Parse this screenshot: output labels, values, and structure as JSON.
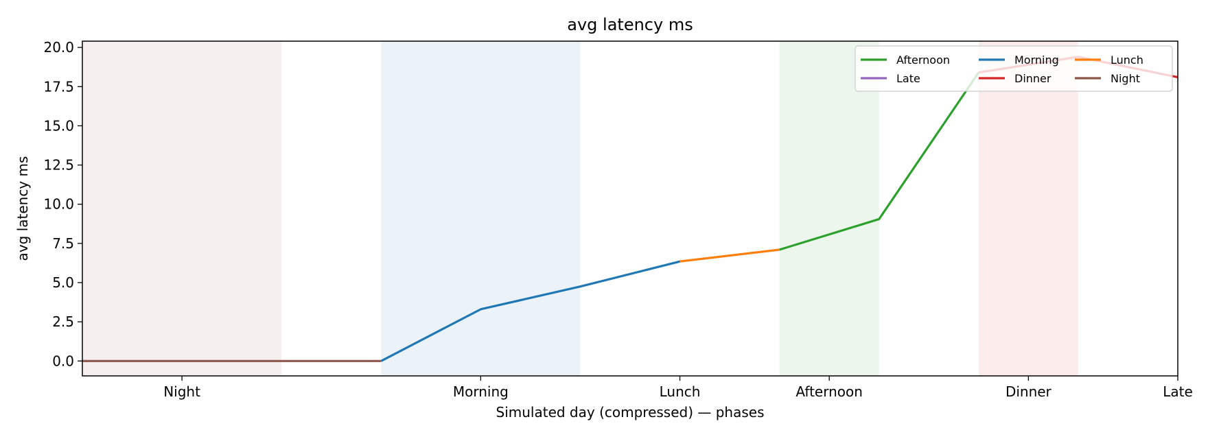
{
  "chart_data": {
    "type": "line",
    "title": "avg latency ms",
    "xlabel": "Simulated day (compressed) — phases",
    "ylabel": "avg latency ms",
    "x_range": [
      0,
      11
    ],
    "ylim": [
      -0.95,
      20.4
    ],
    "yticks": [
      0.0,
      2.5,
      5.0,
      7.5,
      10.0,
      12.5,
      15.0,
      17.5,
      20.0
    ],
    "ytick_labels": [
      "0.0",
      "2.5",
      "5.0",
      "7.5",
      "10.0",
      "12.5",
      "15.0",
      "17.5",
      "20.0"
    ],
    "xticks": [
      {
        "x": 1,
        "label": "Night"
      },
      {
        "x": 4,
        "label": "Morning"
      },
      {
        "x": 6,
        "label": "Lunch"
      },
      {
        "x": 7.5,
        "label": "Afternoon"
      },
      {
        "x": 9.5,
        "label": "Dinner"
      },
      {
        "x": 11,
        "label": "Late"
      }
    ],
    "phase_bands": [
      {
        "phase": "Night",
        "x0": 0,
        "x1": 2,
        "color": "#8c564b"
      },
      {
        "phase": "Morning",
        "x0": 3,
        "x1": 5,
        "color": "#1f77b4"
      },
      {
        "phase": "Afternoon",
        "x0": 7,
        "x1": 8,
        "color": "#2ca02c"
      },
      {
        "phase": "Dinner",
        "x0": 9,
        "x1": 10,
        "color": "#d62728"
      }
    ],
    "series": [
      {
        "name": "Night",
        "color": "#8c564b",
        "x": [
          0,
          1,
          2,
          3
        ],
        "y": [
          0,
          0,
          0,
          0
        ]
      },
      {
        "name": "Morning",
        "color": "#1f77b4",
        "x": [
          3,
          4,
          5,
          6
        ],
        "y": [
          0,
          3.3,
          4.75,
          6.35
        ]
      },
      {
        "name": "Lunch",
        "color": "#ff7f0e",
        "x": [
          6,
          7
        ],
        "y": [
          6.35,
          7.1
        ]
      },
      {
        "name": "Afternoon",
        "color": "#2ca02c",
        "x": [
          7,
          8,
          9
        ],
        "y": [
          7.1,
          9.05,
          18.4
        ]
      },
      {
        "name": "Dinner",
        "color": "#d62728",
        "x": [
          9,
          10,
          11
        ],
        "y": [
          18.4,
          19.4,
          18.1
        ]
      },
      {
        "name": "Late",
        "color": "#9467bd",
        "x": [],
        "y": []
      }
    ],
    "legend": {
      "placement": "top-right",
      "columns": 3,
      "entries": [
        "Afternoon",
        "Late",
        "Morning",
        "Dinner",
        "Lunch",
        "Night"
      ]
    },
    "grid": false
  }
}
